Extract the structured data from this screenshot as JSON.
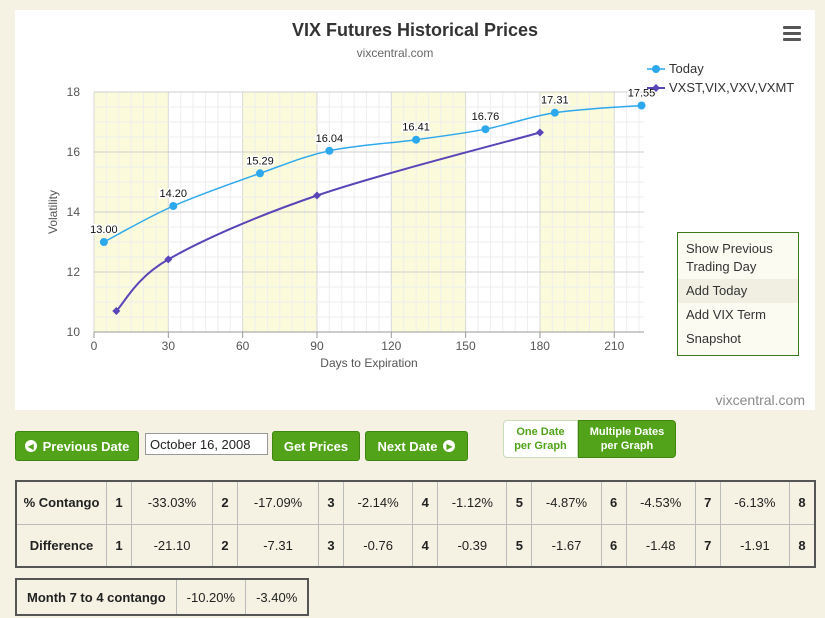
{
  "chart_data": {
    "type": "line",
    "title": "VIX Futures Historical Prices",
    "subtitle": "vixcentral.com",
    "xlabel": "Days to Expiration",
    "ylabel": "Volatility",
    "xlim": [
      0,
      222
    ],
    "ylim": [
      10,
      18
    ],
    "x_ticks": [
      0,
      30,
      60,
      90,
      120,
      150,
      180,
      210
    ],
    "y_ticks": [
      10,
      12,
      14,
      16,
      18
    ],
    "bands": [
      [
        0,
        30
      ],
      [
        60,
        90
      ],
      [
        120,
        150
      ],
      [
        180,
        210
      ]
    ],
    "grid": true,
    "legend_position": "top-right",
    "series": [
      {
        "name": "Today",
        "color": "#2ea8ec",
        "marker": "circle",
        "show_labels": true,
        "x": [
          4,
          32,
          67,
          95,
          130,
          158,
          186,
          221
        ],
        "y": [
          13.0,
          14.2,
          15.29,
          16.04,
          16.41,
          16.76,
          17.31,
          17.55
        ],
        "labels": [
          "13.00",
          "14.20",
          "15.29",
          "16.04",
          "16.41",
          "16.76",
          "17.31",
          "17.55"
        ]
      },
      {
        "name": "VXST,VIX,VXV,VXMT",
        "color": "#5a45b8",
        "marker": "diamond",
        "show_labels": false,
        "x": [
          9,
          30,
          90,
          180
        ],
        "y": [
          10.7,
          12.42,
          14.55,
          16.65
        ]
      }
    ]
  },
  "context_menu": [
    "Show Previous Trading Day",
    "Add Today",
    "Add VIX Term",
    "Snapshot"
  ],
  "credits": "vixcentral.com",
  "controls": {
    "prev_label": "Previous Date",
    "date_value": "October 16, 2008",
    "get_prices_label": "Get Prices",
    "next_label": "Next Date",
    "one_date_label": "One Date per Graph",
    "multiple_dates_label": "Multiple Dates per Graph"
  },
  "contango_table": {
    "rows": [
      {
        "label": "% Contango",
        "cells": [
          [
            "1",
            "-33.03%"
          ],
          [
            "2",
            "-17.09%"
          ],
          [
            "3",
            "-2.14%"
          ],
          [
            "4",
            "-1.12%"
          ],
          [
            "5",
            "-4.87%"
          ],
          [
            "6",
            "-4.53%"
          ],
          [
            "7",
            "-6.13%"
          ],
          [
            "8",
            ""
          ]
        ]
      },
      {
        "label": "Difference",
        "cells": [
          [
            "1",
            "-21.10"
          ],
          [
            "2",
            "-7.31"
          ],
          [
            "3",
            "-0.76"
          ],
          [
            "4",
            "-0.39"
          ],
          [
            "5",
            "-1.67"
          ],
          [
            "6",
            "-1.48"
          ],
          [
            "7",
            "-1.91"
          ],
          [
            "8",
            ""
          ]
        ]
      }
    ]
  },
  "month_table": {
    "label": "Month 7 to 4 contango",
    "values": [
      "-10.20%",
      "-3.40%"
    ]
  }
}
